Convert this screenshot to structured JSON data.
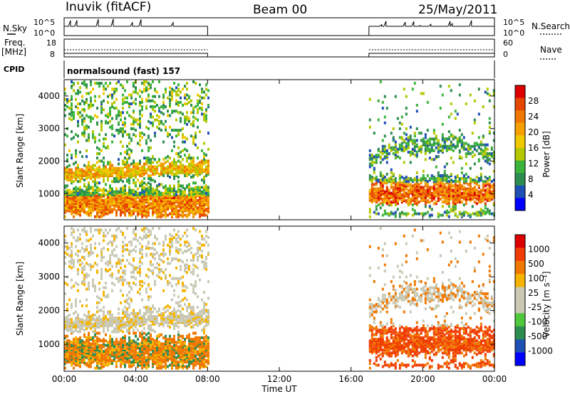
{
  "header": {
    "station": "Inuvik (fitACF)",
    "beam": "Beam 00",
    "date": "25/May/2011"
  },
  "left_labels": {
    "nsky": "N.Sky",
    "freq": "Freq.",
    "mhz": "[MHz]",
    "cpid": "CPID"
  },
  "right_labels": {
    "nsearch": "N.Search",
    "nave": "Nave"
  },
  "cpid_text": "normalsound (fast) 157",
  "colors": {
    "power": [
      "#0000ff",
      "#1e50b4",
      "#2d8c50",
      "#3cb43c",
      "#b4c800",
      "#f0c800",
      "#f5a000",
      "#f07800",
      "#e64600",
      "#dc0000"
    ],
    "velocity": [
      "#dc0000",
      "#f03c00",
      "#f07800",
      "#f5b400",
      "#c8c8b4",
      "#c8c8b4",
      "#50c83c",
      "#2d8c50",
      "#1e50b4",
      "#0000ff"
    ]
  },
  "chart_data": [
    {
      "type": "line",
      "panel": "N.Sky / N.Search",
      "ylim_labels": [
        "10^5",
        "10^0"
      ],
      "right_labels": [
        "10^5",
        "10^0"
      ],
      "x_range_hours": [
        0,
        24
      ],
      "data_segments_hours": [
        [
          0,
          8
        ],
        [
          17,
          24
        ]
      ]
    },
    {
      "type": "line",
      "panel": "Freq. / Nave",
      "left_ticks": [
        "18",
        "8"
      ],
      "right_ticks": [
        "60",
        "0"
      ],
      "x_range_hours": [
        0,
        24
      ],
      "data_segments_hours": [
        [
          0,
          8
        ],
        [
          17,
          24
        ]
      ]
    },
    {
      "type": "heatmap",
      "panel": "Power",
      "ylabel": "Slant Range [km]",
      "yticks": [
        1000,
        2000,
        3000,
        4000
      ],
      "xticks": [
        "00:00",
        "04:00",
        "08:00",
        "12:00",
        "16:00",
        "20:00",
        "00:00"
      ],
      "colorbar_label": "Power [dB]",
      "colorbar_ticks": [
        "4",
        "8",
        "12",
        "16",
        "20",
        "24",
        "28"
      ]
    },
    {
      "type": "heatmap",
      "panel": "Velocity",
      "ylabel": "Slant Range [km]",
      "yticks": [
        1000,
        2000,
        3000,
        4000
      ],
      "xticks": [
        "00:00",
        "04:00",
        "08:00",
        "12:00",
        "16:00",
        "20:00",
        "00:00"
      ],
      "xlabel": "Time UT",
      "colorbar_label": "Velocity [m s⁻¹]",
      "colorbar_ticks": [
        "1000",
        "500",
        "100",
        "25",
        "-25",
        "-100",
        "-500",
        "-1000"
      ]
    }
  ]
}
